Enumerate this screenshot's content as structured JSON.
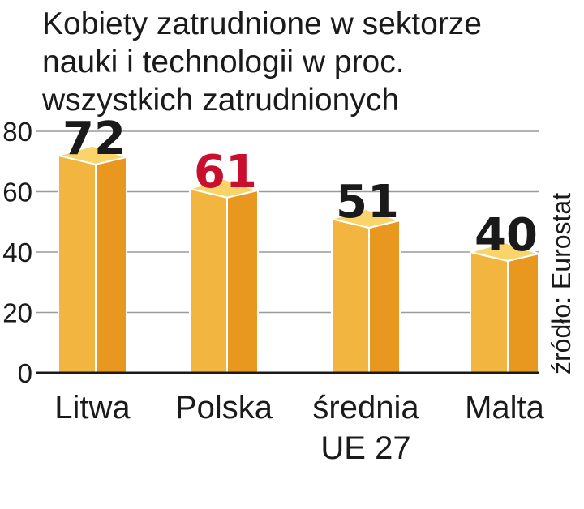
{
  "chart_data": {
    "type": "bar",
    "title_lines": [
      "Kobiety zatrudnione w sektorze",
      "nauki i technologii w proc.",
      "wszystkich zatrudnionych"
    ],
    "categories": [
      [
        "Litwa"
      ],
      [
        "Polska"
      ],
      [
        "średnia",
        "UE 27"
      ],
      [
        "Malta"
      ]
    ],
    "values": [
      72,
      61,
      51,
      40
    ],
    "value_labels": [
      "72",
      "61",
      "51",
      "40"
    ],
    "value_label_colors": [
      "#1a1a1a",
      "#c8102e",
      "#1a1a1a",
      "#1a1a1a"
    ],
    "y_ticks": [
      "0",
      "20",
      "40",
      "60",
      "80"
    ],
    "ylim": [
      0,
      80
    ],
    "grid": true,
    "source": "źródło: Eurostat",
    "colors": {
      "bar_front": "#f2b640",
      "bar_side": "#e8981f",
      "bar_top": "#f8d46a",
      "bar_edge": "#ffffff"
    }
  }
}
